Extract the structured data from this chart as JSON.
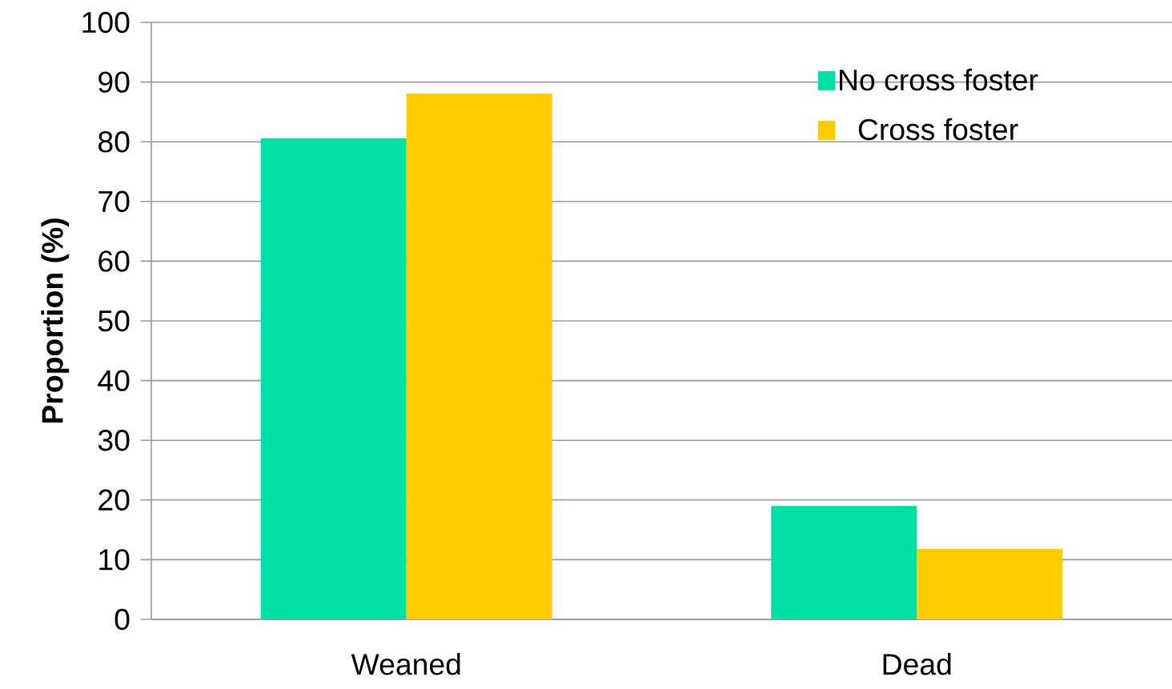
{
  "chart_data": {
    "type": "bar",
    "ylabel": "Proportion (%)",
    "categories": [
      "Weaned",
      "Dead"
    ],
    "series": [
      {
        "name": "No cross foster",
        "color": "#00e0a6",
        "values": [
          80.6,
          19.0
        ]
      },
      {
        "name": "Cross foster",
        "color": "#ffcc00",
        "values": [
          88.1,
          11.8
        ]
      }
    ],
    "ylim": [
      0,
      100
    ],
    "yticks": [
      0,
      10,
      20,
      30,
      40,
      50,
      60,
      70,
      80,
      90,
      100
    ],
    "grid": "y",
    "legend": "top right"
  }
}
